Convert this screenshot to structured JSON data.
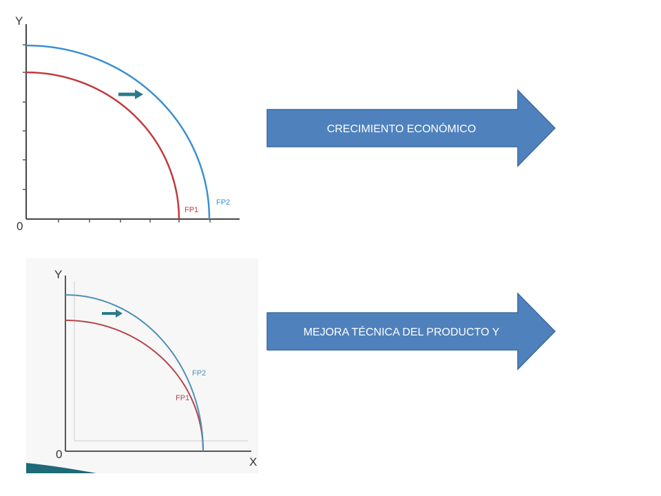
{
  "diagrams": [
    {
      "y_label": "Y",
      "origin_label": "0",
      "curves": [
        {
          "label": "FP1"
        },
        {
          "label": "FP2"
        }
      ]
    },
    {
      "y_label": "Y",
      "x_label": "X",
      "origin_label": "0",
      "curves": [
        {
          "label": "FP1"
        },
        {
          "label": "FP2"
        }
      ]
    }
  ],
  "arrows": [
    {
      "label": "CRECIMIENTO ECONÓMICO"
    },
    {
      "label": "MEJORA TÉCNICA DEL PRODUCTO Y"
    }
  ]
}
